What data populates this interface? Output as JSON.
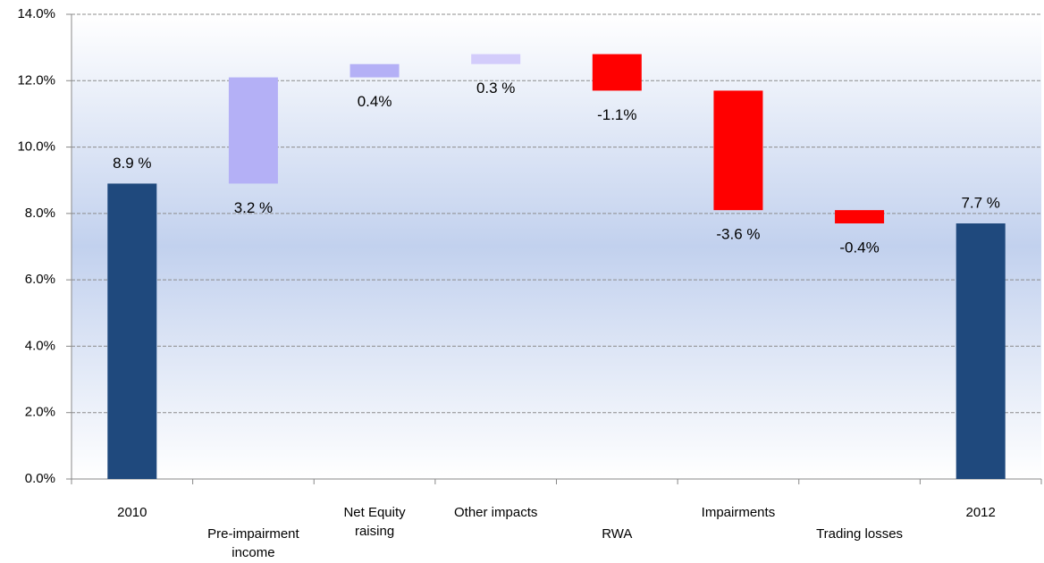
{
  "chart_data": {
    "type": "waterfall",
    "categories": [
      "2010",
      "Pre-impairment income",
      "Net Equity raising",
      "Other impacts",
      "RWA",
      "Impairments",
      "Trading losses",
      "2012"
    ],
    "measure": [
      "absolute",
      "relative",
      "relative",
      "relative",
      "relative",
      "relative",
      "relative",
      "absolute"
    ],
    "values": [
      8.9,
      3.2,
      0.4,
      0.3,
      -1.1,
      -3.6,
      -0.4,
      7.7
    ],
    "value_labels": [
      "8.9 %",
      "3.2 %",
      "0.4%",
      "0.3 %",
      "-1.1%",
      "-3.6 %",
      "-0.4%",
      "7.7 %"
    ],
    "colors": [
      "#1f497d",
      "#b4b0f6",
      "#b4b0f6",
      "#d3ccfb",
      "#ff0000",
      "#ff0000",
      "#ff0000",
      "#1f497d"
    ],
    "ylim": [
      0,
      14
    ],
    "yticks": [
      {
        "value": 0,
        "label": "0.0%"
      },
      {
        "value": 2,
        "label": "2.0%"
      },
      {
        "value": 4,
        "label": "4.0%"
      },
      {
        "value": 6,
        "label": "6.0%"
      },
      {
        "value": 8,
        "label": "8.0%"
      },
      {
        "value": 10,
        "label": "10.0%"
      },
      {
        "value": 12,
        "label": "12.0%"
      },
      {
        "value": 14,
        "label": "14.0%"
      }
    ],
    "grid": true
  }
}
